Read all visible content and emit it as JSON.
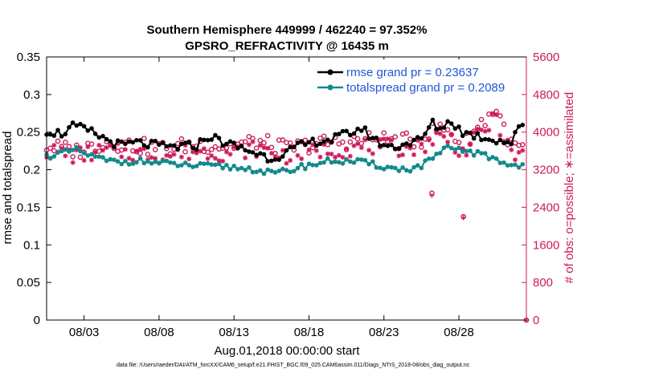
{
  "chart_data": {
    "type": "line",
    "title_line1": "Southern Hemisphere 449999 / 462240 = 97.352%",
    "title_line2": "GPSRO_REFRACTIVITY @ 16435 m",
    "xlabel": "Aug.01,2018 00:00:00 start",
    "ylabel": "rmse and totalspread",
    "ylabel_right": "# of obs: o=possible; ∗=assimilated",
    "xlim": [
      0.5,
      32.5
    ],
    "ylim": [
      0,
      0.35
    ],
    "ylim_right": [
      0,
      5600
    ],
    "x_ticks": [
      3,
      8,
      13,
      18,
      23,
      28
    ],
    "x_tick_labels": [
      "08/03",
      "08/08",
      "08/13",
      "08/18",
      "08/23",
      "08/28"
    ],
    "y_ticks": [
      0,
      0.05,
      0.1,
      0.15,
      0.2,
      0.25,
      0.3,
      0.35
    ],
    "y_tick_labels": [
      "0",
      "0.05",
      "0.1",
      "0.15",
      "0.2",
      "0.25",
      "0.3",
      "0.35"
    ],
    "y_ticks_right": [
      0,
      800,
      1600,
      2400,
      3200,
      4000,
      4800,
      5600
    ],
    "y_tick_labels_right": [
      "0",
      "800",
      "1600",
      "2400",
      "3200",
      "4000",
      "4800",
      "5600"
    ],
    "legend_location": "top-right",
    "colors": {
      "rmse": "#000000",
      "spread": "#138a8a",
      "obs": "#cc1a5a"
    },
    "series": [
      {
        "name": "rmse grand pr = 0.23637",
        "key": "rmse",
        "keypoints_x": [
          0.5,
          1.5,
          2.3,
          3.5,
          4.5,
          5.5,
          6.5,
          8.5,
          10.5,
          11.3,
          12.5,
          14.5,
          15.5,
          17.5,
          18.5,
          19.5,
          21.5,
          22.5,
          23.5,
          24.5,
          25.5,
          26.2,
          26.7,
          27.5,
          28.2,
          29.2,
          30.5,
          31.5,
          32.2,
          32.5
        ],
        "keypoints_y": [
          0.252,
          0.248,
          0.258,
          0.25,
          0.24,
          0.232,
          0.236,
          0.23,
          0.232,
          0.245,
          0.235,
          0.222,
          0.215,
          0.232,
          0.238,
          0.24,
          0.255,
          0.238,
          0.23,
          0.235,
          0.24,
          0.262,
          0.255,
          0.265,
          0.25,
          0.245,
          0.24,
          0.236,
          0.262,
          0.256
        ]
      },
      {
        "name": "totalspread grand pr = 0.2089",
        "key": "spread",
        "keypoints_x": [
          0.5,
          1.5,
          2.5,
          3.5,
          4.5,
          5.5,
          6.5,
          8.5,
          10.5,
          12.5,
          14.5,
          15.5,
          16.5,
          17.5,
          18.5,
          19.5,
          21.5,
          23.5,
          24.5,
          25.5,
          26.2,
          27.2,
          28.5,
          29.5,
          30.5,
          31.5,
          32.5
        ],
        "keypoints_y": [
          0.218,
          0.222,
          0.226,
          0.218,
          0.212,
          0.21,
          0.212,
          0.208,
          0.205,
          0.204,
          0.2,
          0.195,
          0.198,
          0.204,
          0.208,
          0.212,
          0.21,
          0.202,
          0.2,
          0.205,
          0.215,
          0.228,
          0.225,
          0.22,
          0.214,
          0.205,
          0.208
        ]
      },
      {
        "name": "possible",
        "key": "obs_possible",
        "marker": "o",
        "keypoints_x": [
          0.5,
          2.5,
          4.5,
          6.5,
          8.5,
          10.5,
          12.5,
          14.5,
          16.5,
          18.5,
          20.5,
          22.5,
          24.5,
          25.5,
          26.5,
          27.5,
          28.2,
          28.7,
          29.5,
          30.5,
          31.5,
          32.5
        ],
        "keypoints_y": [
          3700,
          3600,
          3800,
          3700,
          3650,
          3750,
          3700,
          3800,
          3650,
          3750,
          3800,
          3850,
          3800,
          3850,
          4100,
          4000,
          3700,
          3900,
          4200,
          4500,
          3700,
          3650
        ]
      },
      {
        "name": "assimilated",
        "key": "obs_assimilated",
        "marker": "*",
        "keypoints_x": [
          0.5,
          2.5,
          4.5,
          6.5,
          8.5,
          10.5,
          12.5,
          14.5,
          16.5,
          18.5,
          20.5,
          22.5,
          24.5,
          25.5,
          26.5,
          27.5,
          28.2,
          28.7,
          29.5,
          30.5,
          31.5,
          32.5
        ],
        "keypoints_y": [
          3600,
          3500,
          3600,
          3550,
          3500,
          3600,
          3550,
          3650,
          3500,
          3600,
          3650,
          3700,
          3650,
          3700,
          3900,
          3850,
          3550,
          3700,
          4000,
          4300,
          3500,
          3500
        ]
      }
    ],
    "annotations": {
      "obs_outliers": [
        {
          "x": 26.2,
          "possible": 2700,
          "assimilated": 2650
        },
        {
          "x": 28.3,
          "possible": 2200,
          "assimilated": 2180
        },
        {
          "x": 32.5,
          "possible": 0,
          "assimilated": 0
        }
      ]
    }
  },
  "footer": "data file: /Users/raeder/DAI/ATM_forcXX/CAM6_setup/f.e21.FHIST_BGC.f09_025.CAM6assim.011/Diags_NTrS_2018-08/obs_diag_output.nc"
}
